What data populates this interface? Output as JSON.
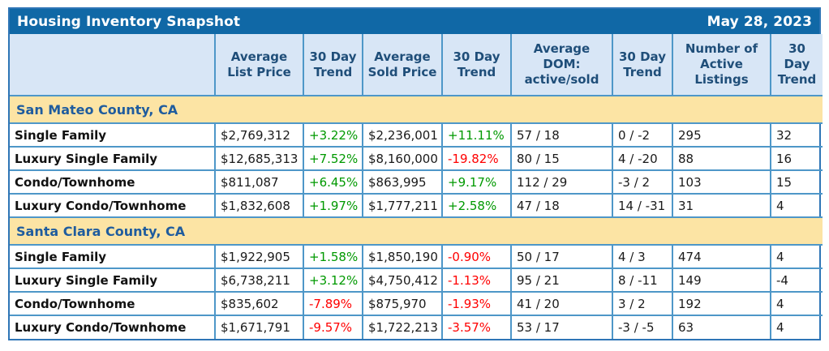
{
  "header": {
    "title": "Housing Inventory Snapshot",
    "date": "May 28, 2023"
  },
  "chart_data": {
    "type": "table",
    "title": "Housing Inventory Snapshot",
    "date": "May 28, 2023",
    "columns": [
      "",
      "Average List Price",
      "30 Day Trend",
      "Average Sold Price",
      "30 Day Trend",
      "Average DOM: active/sold",
      "30 Day Trend",
      "Number of Active Listings",
      "30 Day Trend"
    ],
    "sections": [
      {
        "name": "San Mateo County, CA",
        "rows": [
          {
            "label": "Single Family",
            "cells": [
              {
                "text": "$2,769,312"
              },
              {
                "text": "+3.22%",
                "color": "green"
              },
              {
                "text": "$2,236,001"
              },
              {
                "text": "+11.11%",
                "color": "green"
              },
              {
                "text": "57 / 18"
              },
              {
                "text": "0 / -2"
              },
              {
                "text": "295"
              },
              {
                "text": "32"
              }
            ]
          },
          {
            "label": "Luxury Single Family",
            "cells": [
              {
                "text": "$12,685,313"
              },
              {
                "text": "+7.52%",
                "color": "green"
              },
              {
                "text": "$8,160,000"
              },
              {
                "text": "-19.82%",
                "color": "red"
              },
              {
                "text": "80 / 15"
              },
              {
                "text": "4 / -20"
              },
              {
                "text": "88"
              },
              {
                "text": "16"
              }
            ]
          },
          {
            "label": "Condo/Townhome",
            "cells": [
              {
                "text": "$811,087"
              },
              {
                "text": "+6.45%",
                "color": "green"
              },
              {
                "text": "$863,995"
              },
              {
                "text": "+9.17%",
                "color": "green"
              },
              {
                "text": "112 / 29"
              },
              {
                "text": "-3 / 2"
              },
              {
                "text": "103"
              },
              {
                "text": "15"
              }
            ]
          },
          {
            "label": "Luxury Condo/Townhome",
            "cells": [
              {
                "text": "$1,832,608"
              },
              {
                "text": "+1.97%",
                "color": "green"
              },
              {
                "text": "$1,777,211"
              },
              {
                "text": "+2.58%",
                "color": "green"
              },
              {
                "text": "47 / 18"
              },
              {
                "text": "14 / -31"
              },
              {
                "text": "31"
              },
              {
                "text": "4"
              }
            ]
          }
        ]
      },
      {
        "name": "Santa Clara County, CA",
        "rows": [
          {
            "label": "Single Family",
            "cells": [
              {
                "text": "$1,922,905"
              },
              {
                "text": "+1.58%",
                "color": "green"
              },
              {
                "text": "$1,850,190"
              },
              {
                "text": "-0.90%",
                "color": "red"
              },
              {
                "text": "50 / 17"
              },
              {
                "text": "4 / 3"
              },
              {
                "text": "474"
              },
              {
                "text": "4"
              }
            ]
          },
          {
            "label": "Luxury Single Family",
            "cells": [
              {
                "text": "$6,738,211"
              },
              {
                "text": "+3.12%",
                "color": "green"
              },
              {
                "text": "$4,750,412"
              },
              {
                "text": "-1.13%",
                "color": "red"
              },
              {
                "text": "95 / 21"
              },
              {
                "text": "8 / -11"
              },
              {
                "text": "149"
              },
              {
                "text": "-4"
              }
            ]
          },
          {
            "label": "Condo/Townhome",
            "cells": [
              {
                "text": "$835,602"
              },
              {
                "text": "-7.89%",
                "color": "red"
              },
              {
                "text": "$875,970"
              },
              {
                "text": "-1.93%",
                "color": "red"
              },
              {
                "text": "41 / 20"
              },
              {
                "text": "3 / 2"
              },
              {
                "text": "192"
              },
              {
                "text": "4"
              }
            ]
          },
          {
            "label": "Luxury Condo/Townhome",
            "cells": [
              {
                "text": "$1,671,791"
              },
              {
                "text": "-9.57%",
                "color": "red"
              },
              {
                "text": "$1,722,213"
              },
              {
                "text": "-3.57%",
                "color": "red"
              },
              {
                "text": "53 / 17"
              },
              {
                "text": "-3 / -5"
              },
              {
                "text": "63"
              },
              {
                "text": "4"
              }
            ]
          }
        ]
      }
    ]
  },
  "colors": {
    "title_bar_bg": "#1068A6",
    "title_text": "#FFFFFF",
    "header_bg": "#D8E6F6",
    "header_text": "#1F4E79",
    "section_bg": "#FCE4A4",
    "section_text": "#1F5C9E",
    "trend_up": "#009900",
    "trend_down": "#FF0000",
    "row_border": "#4E97C8",
    "outer_border": "#2E75B6",
    "group_border": "#000000"
  }
}
